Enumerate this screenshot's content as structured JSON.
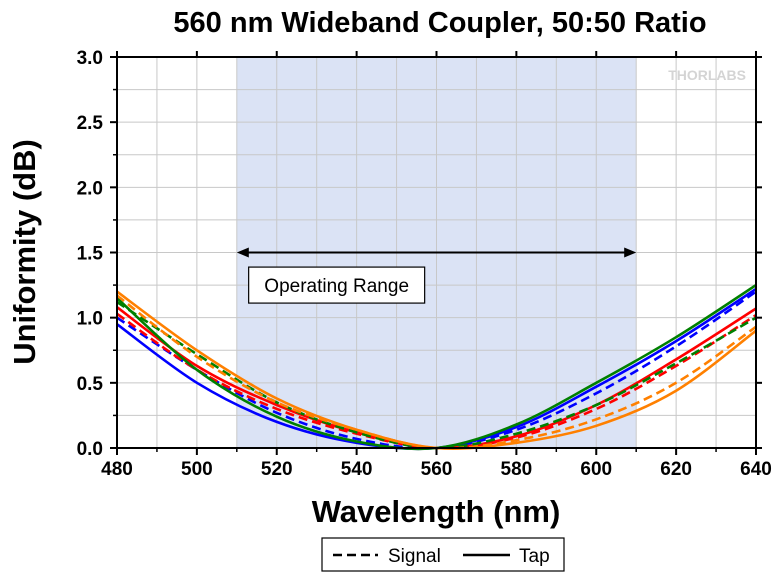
{
  "chart_data": {
    "type": "line",
    "title": "560 nm Wideband Coupler, 50:50 Ratio",
    "xlabel": "Wavelength (nm)",
    "ylabel": "Uniformity (dB)",
    "xlim": [
      480,
      640
    ],
    "ylim": [
      0,
      3.0
    ],
    "x_ticks": [
      "480",
      "500",
      "520",
      "540",
      "560",
      "580",
      "600",
      "620",
      "640"
    ],
    "y_ticks": [
      "0.0",
      "0.5",
      "1.0",
      "1.5",
      "2.0",
      "2.5",
      "3.0"
    ],
    "grid": true,
    "shaded_region": {
      "x": [
        510,
        610
      ],
      "color": "#dbe3f5"
    },
    "annotation": {
      "text": "Operating Range",
      "arrow_x": [
        510,
        610
      ],
      "arrow_y": 1.5,
      "text_x": 535,
      "text_y": 1.25
    },
    "legend": {
      "placement": "bottom-center",
      "entries": [
        {
          "label": "Signal",
          "style": "dashed"
        },
        {
          "label": "Tap",
          "style": "solid"
        }
      ]
    },
    "logo": "THORLABS",
    "series": [
      {
        "color": "#0000ff",
        "style": "dashed",
        "x": [
          480,
          500,
          520,
          540,
          560,
          580,
          600,
          620,
          640
        ],
        "y": [
          1.0,
          0.6,
          0.27,
          0.07,
          0.0,
          0.14,
          0.42,
          0.78,
          1.2
        ]
      },
      {
        "color": "#0000ff",
        "style": "solid",
        "x": [
          480,
          500,
          520,
          540,
          560,
          580,
          600,
          620,
          640
        ],
        "y": [
          0.95,
          0.5,
          0.2,
          0.04,
          0.0,
          0.16,
          0.47,
          0.82,
          1.22
        ]
      },
      {
        "color": "#ff0000",
        "style": "dashed",
        "x": [
          480,
          500,
          520,
          540,
          560,
          580,
          600,
          620,
          640
        ],
        "y": [
          1.03,
          0.6,
          0.3,
          0.11,
          0.0,
          0.08,
          0.3,
          0.63,
          1.02
        ]
      },
      {
        "color": "#ff0000",
        "style": "solid",
        "x": [
          480,
          500,
          520,
          540,
          560,
          580,
          600,
          620,
          640
        ],
        "y": [
          1.08,
          0.63,
          0.33,
          0.12,
          0.0,
          0.09,
          0.33,
          0.68,
          1.07
        ]
      },
      {
        "color": "#008000",
        "style": "dashed",
        "x": [
          480,
          500,
          520,
          540,
          560,
          580,
          600,
          620,
          640
        ],
        "y": [
          1.12,
          0.72,
          0.35,
          0.12,
          0.0,
          0.11,
          0.33,
          0.65,
          1.0
        ]
      },
      {
        "color": "#008000",
        "style": "solid",
        "x": [
          480,
          500,
          520,
          540,
          560,
          580,
          600,
          620,
          640
        ],
        "y": [
          1.15,
          0.6,
          0.24,
          0.05,
          0.0,
          0.18,
          0.5,
          0.85,
          1.25
        ]
      },
      {
        "color": "#ff8000",
        "style": "dashed",
        "x": [
          480,
          500,
          520,
          540,
          560,
          580,
          600,
          620,
          640
        ],
        "y": [
          1.17,
          0.7,
          0.35,
          0.14,
          0.0,
          0.06,
          0.22,
          0.5,
          0.93
        ]
      },
      {
        "color": "#ff8000",
        "style": "solid",
        "x": [
          480,
          500,
          520,
          540,
          560,
          580,
          600,
          620,
          640
        ],
        "y": [
          1.2,
          0.75,
          0.38,
          0.14,
          0.0,
          0.04,
          0.17,
          0.44,
          0.9
        ]
      }
    ]
  }
}
